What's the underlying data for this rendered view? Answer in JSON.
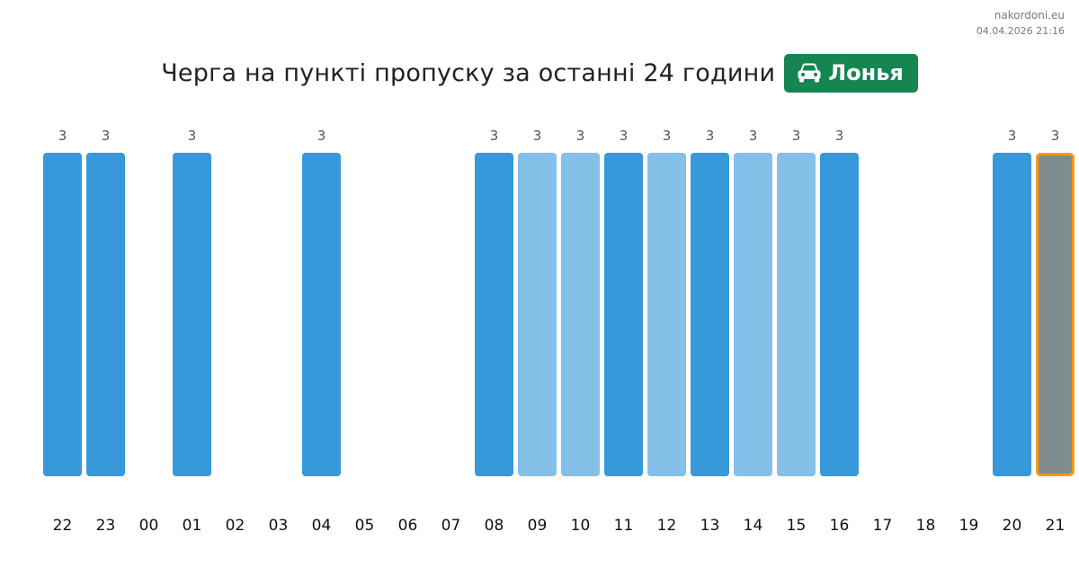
{
  "site": {
    "domain": "nakordoni.eu",
    "timestamp": "04.04.2026 21:16"
  },
  "header": {
    "title": "Черга на пункті пропуску за останні 24 години",
    "checkpoint": "Лонья",
    "checkpoint_icon": "car-icon"
  },
  "colors": {
    "badge": "#158552",
    "bar_dark": "#3798da",
    "bar_light": "#85c0e8",
    "bar_current": "#7f8c8d",
    "current_outline": "#f39c12",
    "label": "#555555",
    "tick": "#111111"
  },
  "chart_data": {
    "type": "bar",
    "title": "Черга на пункті пропуску за останні 24 години",
    "xlabel": "",
    "ylabel": "",
    "categories": [
      "22",
      "23",
      "00",
      "01",
      "02",
      "03",
      "04",
      "05",
      "06",
      "07",
      "08",
      "09",
      "10",
      "11",
      "12",
      "13",
      "14",
      "15",
      "16",
      "17",
      "18",
      "19",
      "20",
      "21"
    ],
    "values": [
      3,
      3,
      null,
      3,
      null,
      null,
      3,
      null,
      null,
      null,
      3,
      3,
      3,
      3,
      3,
      3,
      3,
      3,
      3,
      null,
      null,
      null,
      3,
      3
    ],
    "shade": [
      "dark",
      "dark",
      null,
      "dark",
      null,
      null,
      "dark",
      null,
      null,
      null,
      "dark",
      "light",
      "light",
      "dark",
      "light",
      "dark",
      "light",
      "light",
      "dark",
      null,
      null,
      null,
      "dark",
      "current"
    ],
    "ylim": [
      0,
      3
    ],
    "grid": false,
    "legend": "none"
  }
}
